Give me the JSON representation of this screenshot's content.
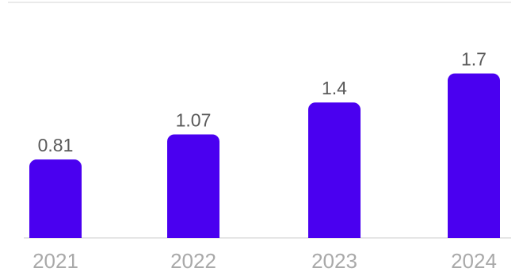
{
  "chart_data": {
    "type": "bar",
    "categories": [
      "2021",
      "2022",
      "2023",
      "2024"
    ],
    "values": [
      0.81,
      1.07,
      1.4,
      1.7
    ],
    "value_labels": [
      "0.81",
      "1.07",
      "1.4",
      "1.7"
    ],
    "title": "",
    "xlabel": "",
    "ylabel": "",
    "ylim": [
      0,
      2.2
    ],
    "grid": false,
    "legend": "none",
    "bar_color": "#4a00f0",
    "label_color": "#5a5a5a",
    "tick_color": "#a9a9a9",
    "baseline_color": "#dddddd"
  }
}
